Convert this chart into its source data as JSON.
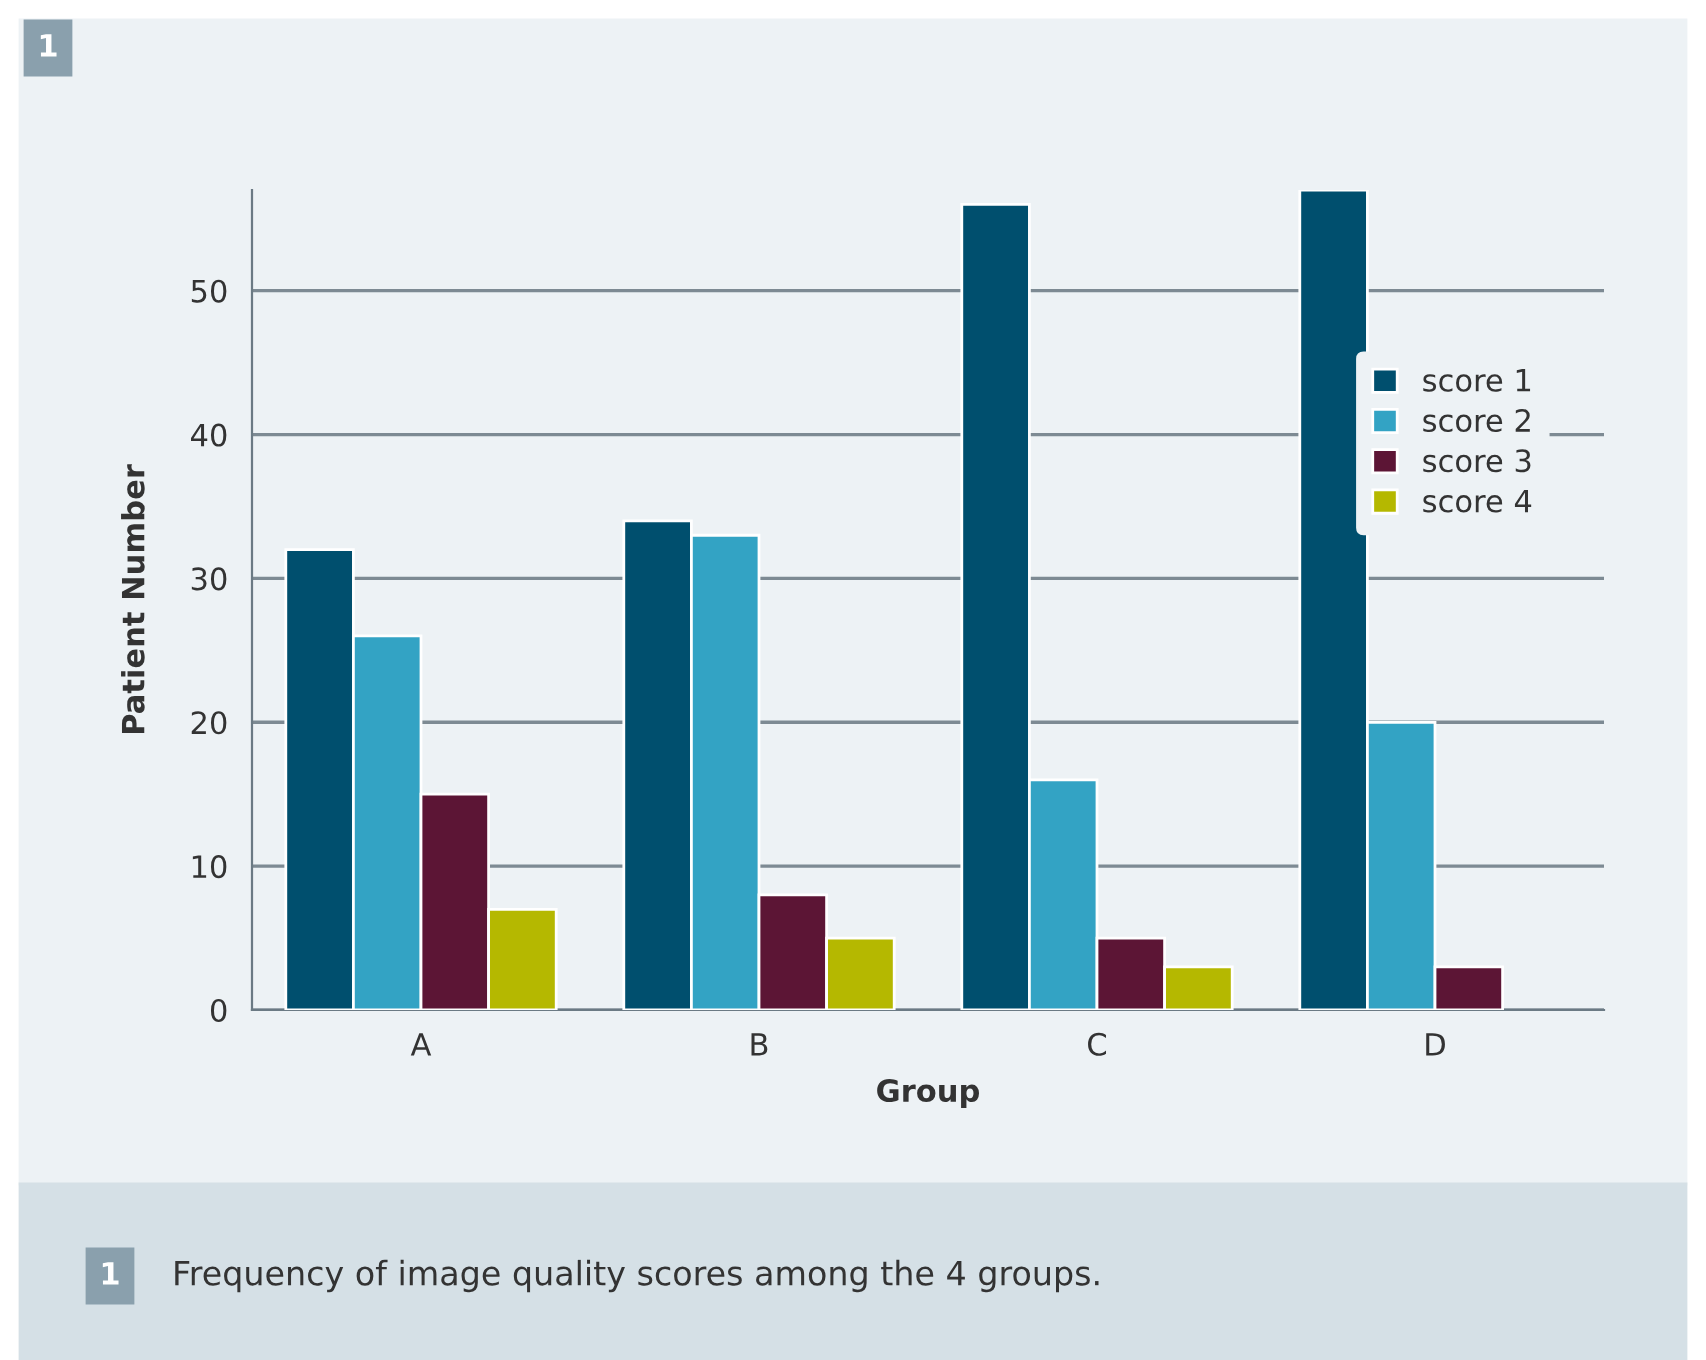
{
  "chart_data": {
    "type": "bar",
    "xlabel": "Group",
    "ylabel": "Patient Number",
    "categories": [
      "A",
      "B",
      "C",
      "D"
    ],
    "series": [
      {
        "name": "score 1",
        "color": "#004f6e",
        "values": [
          32,
          34,
          56,
          57
        ]
      },
      {
        "name": "score 2",
        "color": "#33a3c4",
        "values": [
          26,
          33,
          16,
          20
        ]
      },
      {
        "name": "score 3",
        "color": "#5c1535",
        "values": [
          15,
          8,
          5,
          3
        ]
      },
      {
        "name": "score 4",
        "color": "#b5b800",
        "values": [
          7,
          5,
          3,
          null
        ]
      }
    ],
    "ylim": [
      0,
      57
    ],
    "yticks": [
      0,
      10,
      20,
      30,
      40,
      50
    ],
    "grid": "y",
    "legend": "top right",
    "annotations": [
      "1",
      "1",
      "Frequency of image quality scores among the 4 groups."
    ]
  }
}
